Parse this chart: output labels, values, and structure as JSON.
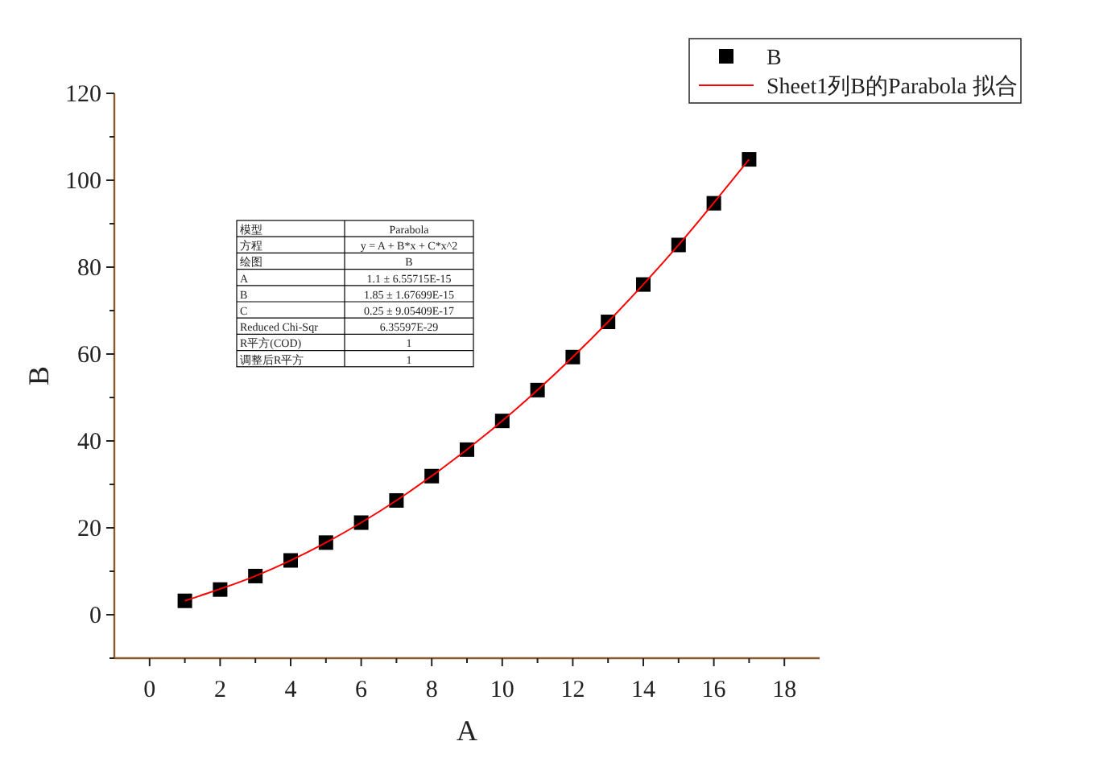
{
  "chart_data": {
    "type": "scatter",
    "xlabel": "A",
    "ylabel": "B",
    "xlim": [
      -1,
      19
    ],
    "ylim": [
      -10,
      120
    ],
    "xticks": [
      0,
      {
        "value": 1,
        "label": null
      },
      2,
      {
        "value": 3,
        "label": null
      },
      4,
      {
        "value": 5,
        "label": null
      },
      6,
      {
        "value": 7,
        "label": null
      },
      8,
      {
        "value": 9,
        "label": null
      },
      10,
      {
        "value": 11,
        "label": null
      },
      12,
      {
        "value": 13,
        "label": null
      },
      14,
      {
        "value": 15,
        "label": null
      },
      16,
      {
        "value": 17,
        "label": null
      },
      18
    ],
    "yticks": [
      {
        "value": -10,
        "label": null
      },
      0,
      {
        "value": 10,
        "label": null
      },
      20,
      {
        "value": 30,
        "label": null
      },
      40,
      {
        "value": 50,
        "label": null
      },
      60,
      {
        "value": 70,
        "label": null
      },
      80,
      {
        "value": 90,
        "label": null
      },
      100,
      {
        "value": 110,
        "label": null
      },
      120
    ],
    "grid": false,
    "legend": "top right",
    "series": [
      {
        "name": "B",
        "marker": "square",
        "color": "#000000",
        "x": [
          1,
          2,
          3,
          4,
          5,
          6,
          7,
          8,
          9,
          10,
          11,
          12,
          13,
          14,
          15,
          16,
          17
        ],
        "values": [
          3.2,
          5.8,
          8.9,
          12.5,
          16.6,
          21.2,
          26.3,
          31.9,
          38.0,
          44.6,
          51.7,
          59.3,
          67.4,
          76.0,
          85.1,
          94.7,
          104.8
        ]
      },
      {
        "name": "Sheet1列B的Parabola 拟合",
        "type": "line",
        "marker": "none",
        "color": "#ff0000",
        "line_style": "solid",
        "x": [
          1,
          3,
          5,
          7,
          9,
          11,
          13,
          15,
          17
        ],
        "values": [
          3.2,
          8.9,
          16.6,
          26.3,
          38.0,
          51.7,
          67.4,
          85.1,
          104.8
        ]
      }
    ],
    "annotations": [
      "模型",
      "Parabola",
      "方程",
      "y = A + B*x + C*x^2",
      "绘图",
      "B",
      "A",
      "1.1 ± 6.55715E-15",
      "B",
      "1.85 ± 1.67699E-15",
      "C",
      "0.25 ± 9.05409E-17",
      "Reduced Chi-Sqr",
      "6.35597E-29",
      "R平方(COD)",
      "1",
      "调整后R平方",
      "1"
    ]
  }
}
